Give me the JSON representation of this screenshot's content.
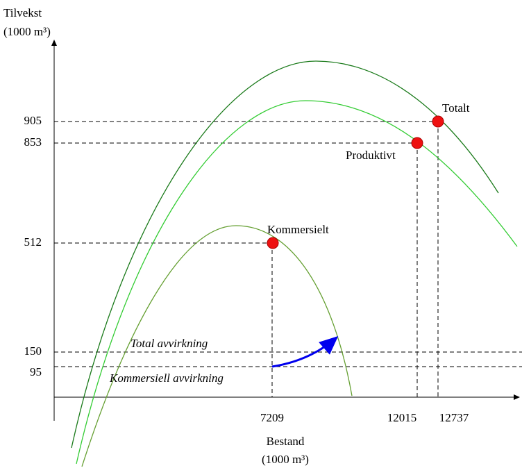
{
  "y_axis": {
    "title": "Tilvekst",
    "unit": "(1000 m³)",
    "ticks": [
      905,
      853,
      512,
      150,
      95
    ]
  },
  "x_axis": {
    "title": "Bestand",
    "unit": "(1000 m³)",
    "ticks": [
      7209,
      12015,
      12737
    ]
  },
  "points": [
    {
      "label": "Totalt"
    },
    {
      "label": "Produktivt"
    },
    {
      "label": "Kommersielt"
    }
  ],
  "annotations": [
    "Total avvirkning",
    "Kommersiell avvirkning"
  ]
}
